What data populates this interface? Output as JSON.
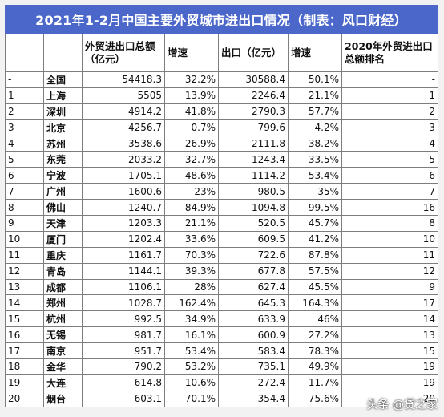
{
  "title": "2021年1-2月中国主要外贸城市进出口情况（制表：风口财经）",
  "headers": [
    "",
    "",
    "外贸进出口总额（亿元）",
    "增速",
    "出口（亿元）",
    "增速",
    "2020年外贸进出口总额排名"
  ],
  "rows": [
    {
      "rank": "-",
      "city": "全国",
      "total": "54418.3",
      "growth": "32.2%",
      "export": "30588.4",
      "export_growth": "50.1%",
      "rank2020": "-"
    },
    {
      "rank": "1",
      "city": "上海",
      "total": "5505",
      "growth": "13.9%",
      "export": "2246.4",
      "export_growth": "21.1%",
      "rank2020": "1"
    },
    {
      "rank": "2",
      "city": "深圳",
      "total": "4914.2",
      "growth": "41.8%",
      "export": "2790.3",
      "export_growth": "57.7%",
      "rank2020": "2"
    },
    {
      "rank": "3",
      "city": "北京",
      "total": "4256.7",
      "growth": "0.7%",
      "export": "799.6",
      "export_growth": "4.2%",
      "rank2020": "3"
    },
    {
      "rank": "4",
      "city": "苏州",
      "total": "3538.6",
      "growth": "26.9%",
      "export": "2111.8",
      "export_growth": "38.2%",
      "rank2020": "4"
    },
    {
      "rank": "5",
      "city": "东莞",
      "total": "2033.2",
      "growth": "32.7%",
      "export": "1243.4",
      "export_growth": "33.5%",
      "rank2020": "5"
    },
    {
      "rank": "6",
      "city": "宁波",
      "total": "1705.1",
      "growth": "48.6%",
      "export": "1114.2",
      "export_growth": "53.4%",
      "rank2020": "6"
    },
    {
      "rank": "7",
      "city": "广州",
      "total": "1600.6",
      "growth": "23%",
      "export": "980.5",
      "export_growth": "35%",
      "rank2020": "7"
    },
    {
      "rank": "8",
      "city": "佛山",
      "total": "1240.7",
      "growth": "84.9%",
      "export": "1094.8",
      "export_growth": "99.5%",
      "rank2020": "16"
    },
    {
      "rank": "9",
      "city": "天津",
      "total": "1203.3",
      "growth": "21.1%",
      "export": "520.5",
      "export_growth": "45.7%",
      "rank2020": "8"
    },
    {
      "rank": "10",
      "city": "厦门",
      "total": "1202.4",
      "growth": "33.6%",
      "export": "609.5",
      "export_growth": "41.2%",
      "rank2020": "10"
    },
    {
      "rank": "11",
      "city": "重庆",
      "total": "1161.7",
      "growth": "70.3%",
      "export": "722.6",
      "export_growth": "87.8%",
      "rank2020": "11"
    },
    {
      "rank": "12",
      "city": "青岛",
      "total": "1144.1",
      "growth": "39.3%",
      "export": "677.8",
      "export_growth": "57.5%",
      "rank2020": "12"
    },
    {
      "rank": "13",
      "city": "成都",
      "total": "1106.1",
      "growth": "28%",
      "export": "627.4",
      "export_growth": "45.5%",
      "rank2020": "9"
    },
    {
      "rank": "14",
      "city": "郑州",
      "total": "1028.7",
      "growth": "162.4%",
      "export": "645.3",
      "export_growth": "164.3%",
      "rank2020": "17"
    },
    {
      "rank": "15",
      "city": "杭州",
      "total": "992.5",
      "growth": "34.9%",
      "export": "633.9",
      "export_growth": "46%",
      "rank2020": "14"
    },
    {
      "rank": "16",
      "city": "无锡",
      "total": "981.7",
      "growth": "16.1%",
      "export": "600.9",
      "export_growth": "27.2%",
      "rank2020": "13"
    },
    {
      "rank": "17",
      "city": "南京",
      "total": "951.7",
      "growth": "53.4%",
      "export": "583.4",
      "export_growth": "78.3%",
      "rank2020": "15"
    },
    {
      "rank": "18",
      "city": "金华",
      "total": "790.2",
      "growth": "53.2%",
      "export": "735.1",
      "export_growth": "49.9%",
      "rank2020": "19"
    },
    {
      "rank": "19",
      "city": "大连",
      "total": "614.8",
      "growth": "-10.6%",
      "export": "272.4",
      "export_growth": "11.7%",
      "rank2020": "19"
    },
    {
      "rank": "20",
      "city": "烟台",
      "total": "603.1",
      "growth": "70.1%",
      "export": "354.4",
      "export_growth": "75.6%",
      "rank2020": "20"
    }
  ],
  "red_threshold_growth": 33.0,
  "red_threshold_export_growth": 50.0,
  "colors": {
    "header_bg": "#4a67c9",
    "highlight": "#e0231e"
  },
  "watermark": "头条 @贷之家"
}
